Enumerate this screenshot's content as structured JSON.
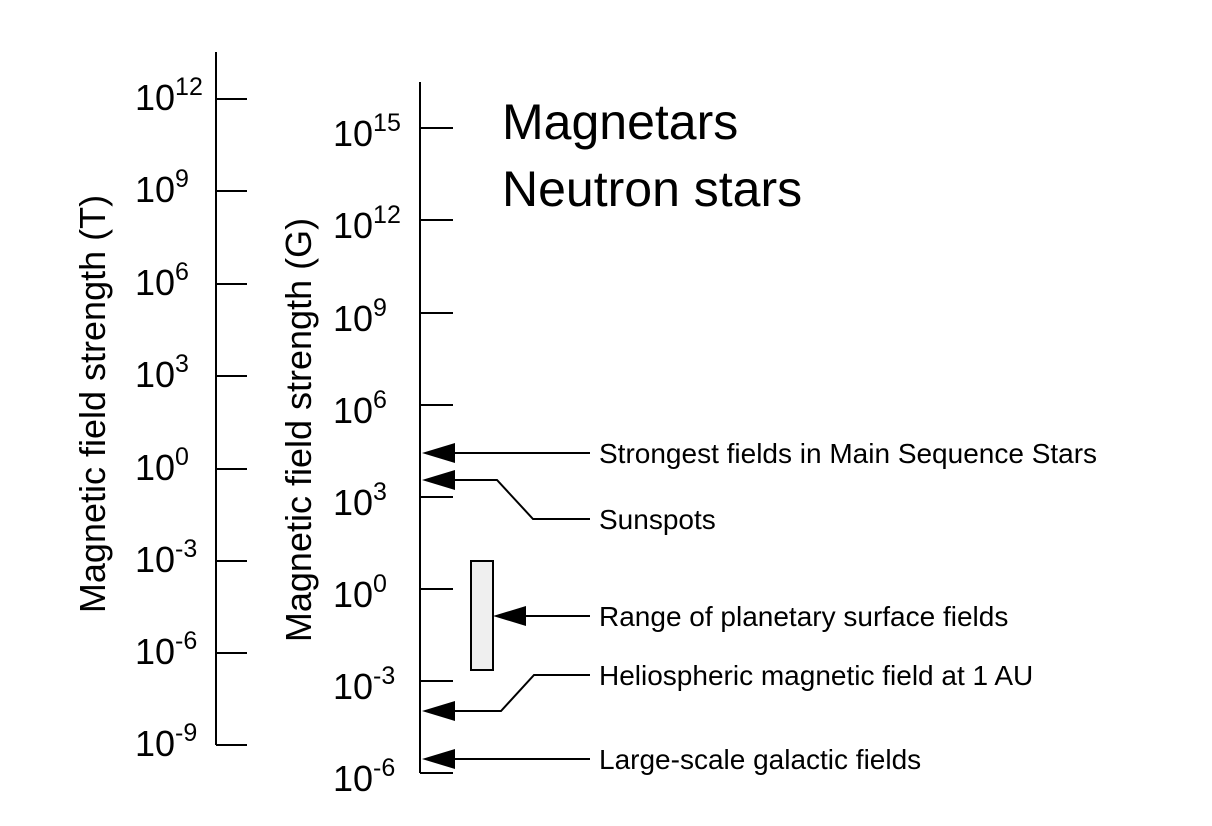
{
  "left_axis": {
    "title": "Magnetic field strength (T)",
    "base": "10",
    "exponents": [
      "12",
      "9",
      "6",
      "3",
      "0",
      "-3",
      "-6",
      "-9"
    ]
  },
  "right_axis": {
    "title": "Magnetic field strength (G)",
    "base": "10",
    "exponents": [
      "15",
      "12",
      "9",
      "6",
      "3",
      "0",
      "-3",
      "-6"
    ]
  },
  "headings": {
    "line1": "Magnetars",
    "line2": "Neutron stars"
  },
  "annotations": [
    {
      "id": "main-sequence",
      "text": "Strongest fields in Main Sequence Stars",
      "gauss_exponent": 3.9
    },
    {
      "id": "sunspots",
      "text": "Sunspots",
      "gauss_exponent": 3.5
    },
    {
      "id": "planetary",
      "text": "Range of planetary surface fields",
      "gauss_exponent_range": [
        -2.6,
        0.9
      ]
    },
    {
      "id": "heliospheric",
      "text": "Heliospheric magnetic field at 1 AU",
      "gauss_exponent": -4.0
    },
    {
      "id": "galactic",
      "text": "Large-scale galactic fields",
      "gauss_exponent": -5.9
    }
  ]
}
